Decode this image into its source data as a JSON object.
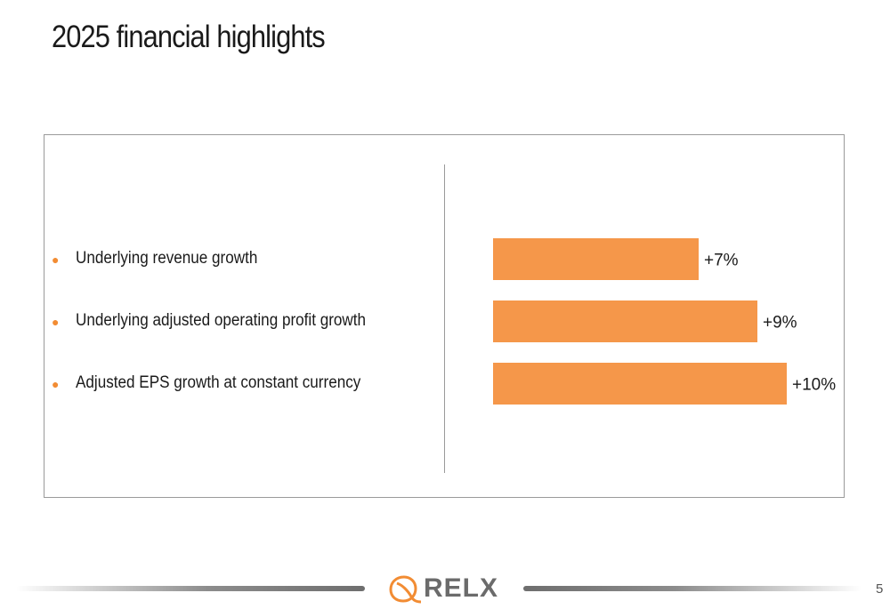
{
  "slide": {
    "title": "2025 financial highlights",
    "page_number": "5",
    "logo_text": "RELX"
  },
  "bullets": [
    "Underlying revenue growth",
    "Underlying adjusted operating profit growth",
    "Adjusted EPS growth at constant currency"
  ],
  "colors": {
    "accent": "#f5974a",
    "bullet": "#f28c33",
    "text": "#1a1a1a",
    "border": "#9a9a9a"
  },
  "chart_data": {
    "type": "bar",
    "orientation": "horizontal",
    "categories": [
      "Underlying revenue growth",
      "Underlying adjusted operating profit growth",
      "Adjusted EPS growth at constant currency"
    ],
    "values": [
      7,
      9,
      10
    ],
    "data_labels": [
      "+7%",
      "+9%",
      "+10%"
    ],
    "unit": "%",
    "xlim": [
      0,
      10
    ],
    "axes_visible": false,
    "grid": false,
    "legend": "none"
  }
}
